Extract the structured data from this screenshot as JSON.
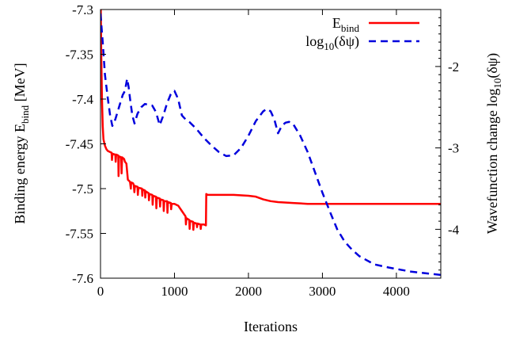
{
  "chart_data": {
    "type": "line",
    "xlabel": "Iterations",
    "ylabel": {
      "main": "Binding energy E",
      "sub": "bind",
      "unit": " [MeV]"
    },
    "y2label": {
      "main": "Wavefunction change log",
      "sub": "10",
      "unit": "(δψ)"
    },
    "xlim": [
      0,
      4600
    ],
    "ylim": [
      -7.6,
      -7.3
    ],
    "y2lim": [
      -4.6,
      -1.3
    ],
    "xticks": [
      0,
      1000,
      2000,
      3000,
      4000
    ],
    "xtick_labels": [
      "0",
      "1000",
      "2000",
      "3000",
      "4000"
    ],
    "yticks": [
      -7.6,
      -7.55,
      -7.5,
      -7.45,
      -7.4,
      -7.35,
      -7.3
    ],
    "ytick_labels": [
      "-7.6",
      "-7.55",
      "-7.5",
      "-7.45",
      "-7.4",
      "-7.35",
      "-7.3"
    ],
    "y2ticks": [
      -4,
      -3,
      -2
    ],
    "y2tick_labels": [
      "-4",
      "-3",
      "-2"
    ],
    "grid": false,
    "legend_position": "top-right",
    "series": [
      {
        "name": {
          "main": "E",
          "sub": "bind",
          "rest": ""
        },
        "axis": "left",
        "color": "#ff0000",
        "dash": "solid",
        "points": [
          [
            0,
            -7.27
          ],
          [
            10,
            -7.35
          ],
          [
            20,
            -7.4
          ],
          [
            30,
            -7.43
          ],
          [
            40,
            -7.445
          ],
          [
            60,
            -7.452
          ],
          [
            80,
            -7.456
          ],
          [
            100,
            -7.458
          ],
          [
            150,
            -7.46
          ],
          [
            155,
            -7.468
          ],
          [
            162,
            -7.461
          ],
          [
            200,
            -7.462
          ],
          [
            205,
            -7.47
          ],
          [
            212,
            -7.462
          ],
          [
            240,
            -7.463
          ],
          [
            244,
            -7.486
          ],
          [
            250,
            -7.464
          ],
          [
            280,
            -7.465
          ],
          [
            285,
            -7.483
          ],
          [
            292,
            -7.465
          ],
          [
            320,
            -7.467
          ],
          [
            330,
            -7.47
          ],
          [
            350,
            -7.472
          ],
          [
            370,
            -7.49
          ],
          [
            395,
            -7.492
          ],
          [
            400,
            -7.493
          ],
          [
            410,
            -7.5
          ],
          [
            415,
            -7.493
          ],
          [
            440,
            -7.494
          ],
          [
            450,
            -7.496
          ],
          [
            458,
            -7.504
          ],
          [
            465,
            -7.497
          ],
          [
            500,
            -7.498
          ],
          [
            505,
            -7.507
          ],
          [
            512,
            -7.499
          ],
          [
            560,
            -7.5
          ],
          [
            565,
            -7.508
          ],
          [
            572,
            -7.501
          ],
          [
            600,
            -7.502
          ],
          [
            605,
            -7.51
          ],
          [
            612,
            -7.503
          ],
          [
            650,
            -7.505
          ],
          [
            655,
            -7.513
          ],
          [
            662,
            -7.506
          ],
          [
            700,
            -7.507
          ],
          [
            705,
            -7.518
          ],
          [
            712,
            -7.508
          ],
          [
            750,
            -7.509
          ],
          [
            755,
            -7.522
          ],
          [
            762,
            -7.51
          ],
          [
            800,
            -7.511
          ],
          [
            805,
            -7.52
          ],
          [
            812,
            -7.512
          ],
          [
            850,
            -7.513
          ],
          [
            855,
            -7.525
          ],
          [
            862,
            -7.514
          ],
          [
            900,
            -7.514
          ],
          [
            905,
            -7.527
          ],
          [
            912,
            -7.515
          ],
          [
            950,
            -7.516
          ],
          [
            955,
            -7.523
          ],
          [
            962,
            -7.517
          ],
          [
            1000,
            -7.517
          ],
          [
            1050,
            -7.519
          ],
          [
            1100,
            -7.525
          ],
          [
            1150,
            -7.531
          ],
          [
            1155,
            -7.54
          ],
          [
            1162,
            -7.533
          ],
          [
            1200,
            -7.535
          ],
          [
            1205,
            -7.545
          ],
          [
            1212,
            -7.536
          ],
          [
            1250,
            -7.537
          ],
          [
            1255,
            -7.546
          ],
          [
            1262,
            -7.538
          ],
          [
            1300,
            -7.539
          ],
          [
            1305,
            -7.543
          ],
          [
            1312,
            -7.539
          ],
          [
            1350,
            -7.54
          ],
          [
            1355,
            -7.545
          ],
          [
            1362,
            -7.54
          ],
          [
            1400,
            -7.54
          ],
          [
            1425,
            -7.541
          ],
          [
            1430,
            -7.506
          ],
          [
            1450,
            -7.507
          ],
          [
            1600,
            -7.507
          ],
          [
            1800,
            -7.507
          ],
          [
            2000,
            -7.508
          ],
          [
            2100,
            -7.509
          ],
          [
            2200,
            -7.512
          ],
          [
            2300,
            -7.514
          ],
          [
            2400,
            -7.515
          ],
          [
            2600,
            -7.516
          ],
          [
            2800,
            -7.517
          ],
          [
            3000,
            -7.517
          ],
          [
            3500,
            -7.517
          ],
          [
            4000,
            -7.517
          ],
          [
            4600,
            -7.517
          ]
        ]
      },
      {
        "name": {
          "main": "log",
          "sub": "10",
          "rest": "(δψ)"
        },
        "axis": "right",
        "color": "#0000dd",
        "dash": "dashed",
        "points": [
          [
            0,
            -1.35
          ],
          [
            30,
            -1.7
          ],
          [
            60,
            -2.1
          ],
          [
            100,
            -2.4
          ],
          [
            130,
            -2.6
          ],
          [
            160,
            -2.73
          ],
          [
            200,
            -2.65
          ],
          [
            250,
            -2.5
          ],
          [
            300,
            -2.35
          ],
          [
            330,
            -2.3
          ],
          [
            360,
            -2.15
          ],
          [
            380,
            -2.25
          ],
          [
            400,
            -2.4
          ],
          [
            430,
            -2.6
          ],
          [
            460,
            -2.7
          ],
          [
            500,
            -2.58
          ],
          [
            550,
            -2.5
          ],
          [
            600,
            -2.46
          ],
          [
            650,
            -2.47
          ],
          [
            700,
            -2.48
          ],
          [
            750,
            -2.56
          ],
          [
            800,
            -2.72
          ],
          [
            850,
            -2.6
          ],
          [
            900,
            -2.45
          ],
          [
            950,
            -2.34
          ],
          [
            1000,
            -2.3
          ],
          [
            1050,
            -2.4
          ],
          [
            1100,
            -2.6
          ],
          [
            1150,
            -2.65
          ],
          [
            1200,
            -2.68
          ],
          [
            1300,
            -2.77
          ],
          [
            1400,
            -2.88
          ],
          [
            1500,
            -2.97
          ],
          [
            1600,
            -3.05
          ],
          [
            1700,
            -3.1
          ],
          [
            1800,
            -3.09
          ],
          [
            1900,
            -3.0
          ],
          [
            2000,
            -2.85
          ],
          [
            2100,
            -2.67
          ],
          [
            2200,
            -2.55
          ],
          [
            2250,
            -2.52
          ],
          [
            2300,
            -2.55
          ],
          [
            2350,
            -2.65
          ],
          [
            2400,
            -2.82
          ],
          [
            2450,
            -2.73
          ],
          [
            2500,
            -2.69
          ],
          [
            2550,
            -2.68
          ],
          [
            2600,
            -2.7
          ],
          [
            2700,
            -2.85
          ],
          [
            2800,
            -3.05
          ],
          [
            2900,
            -3.3
          ],
          [
            3000,
            -3.55
          ],
          [
            3100,
            -3.78
          ],
          [
            3200,
            -4.0
          ],
          [
            3300,
            -4.15
          ],
          [
            3400,
            -4.25
          ],
          [
            3500,
            -4.33
          ],
          [
            3700,
            -4.43
          ],
          [
            3900,
            -4.47
          ],
          [
            4200,
            -4.52
          ],
          [
            4600,
            -4.56
          ]
        ]
      }
    ]
  }
}
